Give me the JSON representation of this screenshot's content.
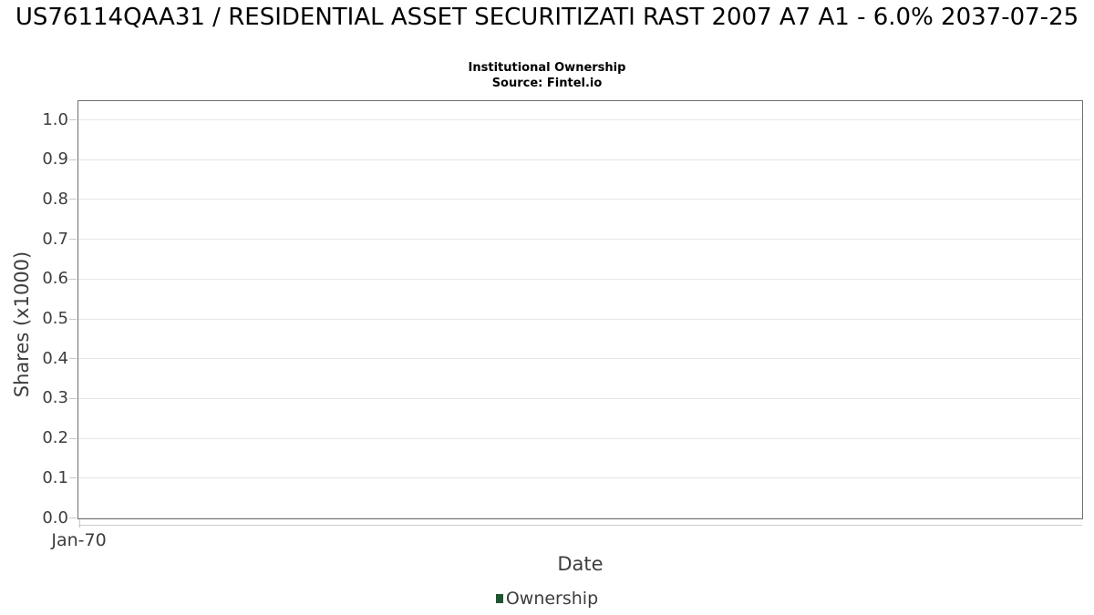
{
  "chart_data": {
    "type": "line",
    "title": "US76114QAA31 / RESIDENTIAL ASSET SECURITIZATI RAST 2007 A7 A1 - 6.0% 2037-07-25",
    "subtitle": "Institutional Ownership",
    "source": "Source: Fintel.io",
    "xlabel": "Date",
    "ylabel": "Shares (x1000)",
    "ylim": [
      0.0,
      1.05
    ],
    "yticks": [
      "0.0",
      "0.1",
      "0.2",
      "0.3",
      "0.4",
      "0.5",
      "0.6",
      "0.7",
      "0.8",
      "0.9",
      "1.0"
    ],
    "xticks": [
      "Jan-70"
    ],
    "grid": true,
    "legend_position": "bottom",
    "series": [
      {
        "name": "Ownership",
        "color": "#1e5631",
        "x": [],
        "values": []
      }
    ]
  },
  "colors": {
    "plot_border": "#6f6f6f",
    "gridline": "#e6e6e6",
    "tick_mark": "#c9c9c9",
    "tick_text": "#3d3d3d",
    "title_text": "#000000",
    "legend_swatch": "#1e5631",
    "background": "#ffffff"
  }
}
